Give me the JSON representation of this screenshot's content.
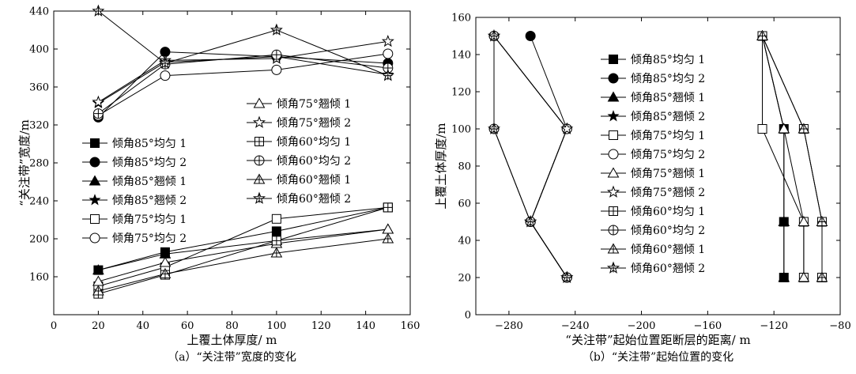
{
  "chart_data": [
    {
      "type": "line",
      "caption": "（a）“关注带”宽度的变化",
      "xlabel": "上覆土体厚度/ m",
      "ylabel": "“关注带”宽度/m",
      "xlim": [
        0,
        160
      ],
      "ylim": [
        120,
        440
      ],
      "xticks": [
        "0",
        "20",
        "40",
        "60",
        "80",
        "100",
        "120",
        "140",
        "160"
      ],
      "yticks": [
        "160",
        "200",
        "240",
        "280",
        "320",
        "360",
        "400",
        "440"
      ],
      "x": [
        20,
        50,
        100,
        150
      ],
      "series": [
        {
          "name": "倾角85°均匀 1",
          "marker": "square-filled",
          "values": [
            167,
            186,
            208,
            233
          ]
        },
        {
          "name": "倾角85°均匀 2",
          "marker": "circle-filled",
          "values": [
            328,
            397,
            392,
            385
          ]
        },
        {
          "name": "倾角85°翘倾 1",
          "marker": "triangle-filled",
          "values": [
            167,
            184,
            198,
            210
          ]
        },
        {
          "name": "倾角85°翘倾 2",
          "marker": "star-filled",
          "values": [
            343,
            386,
            392,
            373
          ]
        },
        {
          "name": "倾角75°均匀 1",
          "marker": "square-open",
          "values": [
            150,
            170,
            221,
            233
          ]
        },
        {
          "name": "倾角75°均匀 2",
          "marker": "circle-open",
          "values": [
            330,
            372,
            378,
            395
          ]
        },
        {
          "name": "倾角75°翘倾 1",
          "marker": "triangle-open",
          "values": [
            155,
            175,
            195,
            210
          ]
        },
        {
          "name": "倾角75°翘倾 2",
          "marker": "star-open",
          "values": [
            344,
            388,
            390,
            408
          ]
        },
        {
          "name": "倾角60°均匀 1",
          "marker": "square-plus",
          "values": [
            142,
            162,
            198,
            233
          ]
        },
        {
          "name": "倾角60°均匀 2",
          "marker": "circle-plus",
          "values": [
            332,
            384,
            394,
            380
          ]
        },
        {
          "name": "倾角60°翘倾 1",
          "marker": "triangle-plus",
          "values": [
            145,
            163,
            185,
            200
          ]
        },
        {
          "name": "倾角60°翘倾 2",
          "marker": "star-plus",
          "values": [
            440,
            385,
            420,
            372
          ]
        }
      ],
      "legend_groups": [
        [
          0,
          1,
          2,
          3,
          4,
          5
        ],
        [
          6,
          7,
          8,
          9,
          10,
          11
        ]
      ]
    },
    {
      "type": "line",
      "caption": "（b）“关注带”起始位置的变化",
      "xlabel": "“关注带”起始位置距断层的距离/ m",
      "ylabel": "上覆土体厚度/m",
      "xlim": [
        -300,
        -80
      ],
      "ylim": [
        0,
        160
      ],
      "xticks": [
        "−280",
        "−240",
        "−200",
        "−160",
        "−120",
        "−80"
      ],
      "yticks": [
        "0",
        "20",
        "40",
        "60",
        "80",
        "100",
        "120",
        "140",
        "160"
      ],
      "y": [
        20,
        50,
        100,
        150
      ],
      "series": [
        {
          "name": "倾角85°均匀 1",
          "marker": "square-filled",
          "x": [
            -114,
            -114,
            -114,
            -127
          ]
        },
        {
          "name": "倾角85°均匀 2",
          "marker": "circle-filled",
          "x": [
            -245,
            -267,
            -245,
            -267
          ]
        },
        {
          "name": "倾角85°翘倾 1",
          "marker": "triangle-filled",
          "x": [
            -114,
            -114,
            -114,
            -127
          ]
        },
        {
          "name": "倾角85°翘倾 2",
          "marker": "star-filled",
          "x": [
            -245,
            -267,
            -245,
            -289
          ]
        },
        {
          "name": "倾角75°均匀 1",
          "marker": "square-open",
          "x": [
            -102,
            -102,
            -127,
            -127
          ]
        },
        {
          "name": "倾角75°均匀 2",
          "marker": "circle-open",
          "x": [
            -245,
            -267,
            -245,
            -289
          ]
        },
        {
          "name": "倾角75°翘倾 1",
          "marker": "triangle-open",
          "x": [
            -102,
            -102,
            -114,
            -127
          ]
        },
        {
          "name": "倾角75°翘倾 2",
          "marker": "star-open",
          "x": [
            -245,
            -267,
            -245,
            -289
          ]
        },
        {
          "name": "倾角60°均匀 1",
          "marker": "square-plus",
          "x": [
            -91,
            -91,
            -102,
            -127
          ]
        },
        {
          "name": "倾角60°均匀 2",
          "marker": "circle-plus",
          "x": [
            -245,
            -267,
            -289,
            -289
          ]
        },
        {
          "name": "倾角60°翘倾 1",
          "marker": "triangle-plus",
          "x": [
            -91,
            -91,
            -102,
            -127
          ]
        },
        {
          "name": "倾角60°翘倾 2",
          "marker": "star-plus",
          "x": [
            -245,
            -267,
            -289,
            -289
          ]
        }
      ]
    }
  ]
}
